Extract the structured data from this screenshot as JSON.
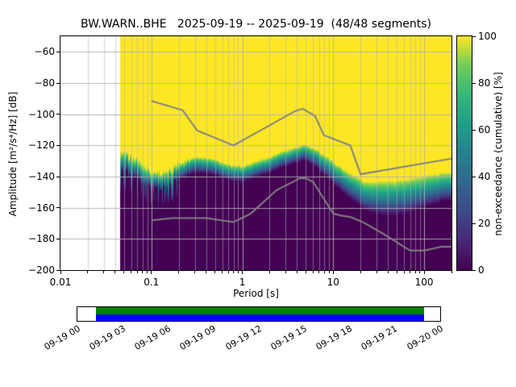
{
  "chart_data": {
    "type": "heatmap",
    "title": "BW.WARN..BHE   2025-09-19 -- 2025-09-19  (48/48 segments)",
    "xlabel": "Period [s]",
    "ylabel": "Amplitude [m²/s⁴/Hz] [dB]",
    "x_scale": "log",
    "xlim": [
      0.01,
      200
    ],
    "ylim": [
      -200,
      -50
    ],
    "grid": true,
    "x_ticks": [
      0.01,
      0.1,
      1,
      10,
      100
    ],
    "x_tick_labels": [
      "0.01",
      "0.1",
      "1",
      "10",
      "100"
    ],
    "y_ticks": [
      -60,
      -80,
      -100,
      -120,
      -140,
      -160,
      -180,
      -200
    ],
    "y_tick_labels": [
      "−60",
      "−80",
      "−100",
      "−120",
      "−140",
      "−160",
      "−180",
      "−200"
    ],
    "colorbar": {
      "label": "non-exceedance (cumulative) [%]",
      "lim": [
        0,
        100
      ],
      "ticks": [
        0,
        20,
        40,
        60,
        80,
        100
      ],
      "tick_labels": [
        "0",
        "20",
        "40",
        "60",
        "80",
        "100"
      ]
    },
    "colormap": {
      "name": "viridis",
      "stops": [
        {
          "t": 0.0,
          "c": "#440154"
        },
        {
          "t": 0.125,
          "c": "#482878"
        },
        {
          "t": 0.25,
          "c": "#3e4a89"
        },
        {
          "t": 0.375,
          "c": "#31688e"
        },
        {
          "t": 0.5,
          "c": "#26828e"
        },
        {
          "t": 0.625,
          "c": "#1f9e89"
        },
        {
          "t": 0.75,
          "c": "#35b779"
        },
        {
          "t": 0.875,
          "c": "#6dcd59"
        },
        {
          "t": 1.0,
          "c": "#fde725"
        }
      ]
    },
    "data_period_range": [
      0.045,
      200
    ],
    "distribution": {
      "periods": [
        0.045,
        0.07,
        0.1,
        0.14,
        0.2,
        0.3,
        0.45,
        0.7,
        1.0,
        1.8,
        3.0,
        5.0,
        7.0,
        10,
        15,
        22,
        35,
        60,
        100,
        178
      ],
      "center_db": [
        -127,
        -133,
        -139,
        -141,
        -134,
        -130,
        -131,
        -135,
        -136,
        -131,
        -126,
        -122,
        -127,
        -134,
        -142,
        -148,
        -149,
        -148,
        -145,
        -142
      ],
      "half_width_db": [
        6,
        6,
        5,
        5,
        5,
        5,
        5,
        5,
        5,
        5,
        5,
        5,
        6,
        7,
        8,
        9,
        11,
        11,
        10,
        9
      ]
    },
    "noise_models": {
      "color": "#828282",
      "high": [
        [
          0.1,
          -91.5
        ],
        [
          0.22,
          -97.4
        ],
        [
          0.32,
          -110.5
        ],
        [
          0.8,
          -120.0
        ],
        [
          3.8,
          -98.0
        ],
        [
          4.6,
          -96.5
        ],
        [
          6.3,
          -101.0
        ],
        [
          7.9,
          -113.5
        ],
        [
          15.4,
          -120.0
        ],
        [
          20.0,
          -138.5
        ],
        [
          354.8,
          -126.0
        ]
      ],
      "low": [
        [
          0.1,
          -168.0
        ],
        [
          0.17,
          -166.7
        ],
        [
          0.4,
          -166.7
        ],
        [
          0.8,
          -169.2
        ],
        [
          1.24,
          -163.7
        ],
        [
          2.4,
          -148.6
        ],
        [
          4.3,
          -141.1
        ],
        [
          5.0,
          -141.1
        ],
        [
          6.0,
          -143.4
        ],
        [
          10.0,
          -163.7
        ],
        [
          12.0,
          -165.0
        ],
        [
          15.6,
          -166.0
        ],
        [
          21.9,
          -169.7
        ],
        [
          31.6,
          -175.0
        ],
        [
          45.0,
          -180.4
        ],
        [
          70.0,
          -187.5
        ],
        [
          101.0,
          -187.5
        ],
        [
          154.0,
          -185.0
        ],
        [
          328.0,
          -185.0
        ]
      ]
    }
  },
  "timeline": {
    "tick_labels": [
      "09-19 00",
      "09-19 03",
      "09-19 06",
      "09-19 09",
      "09-19 12",
      "09-19 15",
      "09-19 18",
      "09-19 21",
      "09-20 00"
    ],
    "coverage_color_top": "#008000",
    "coverage_color_bottom": "#0000ff",
    "coverage": {
      "start_frac": 0.05,
      "end_frac": 0.955
    }
  }
}
